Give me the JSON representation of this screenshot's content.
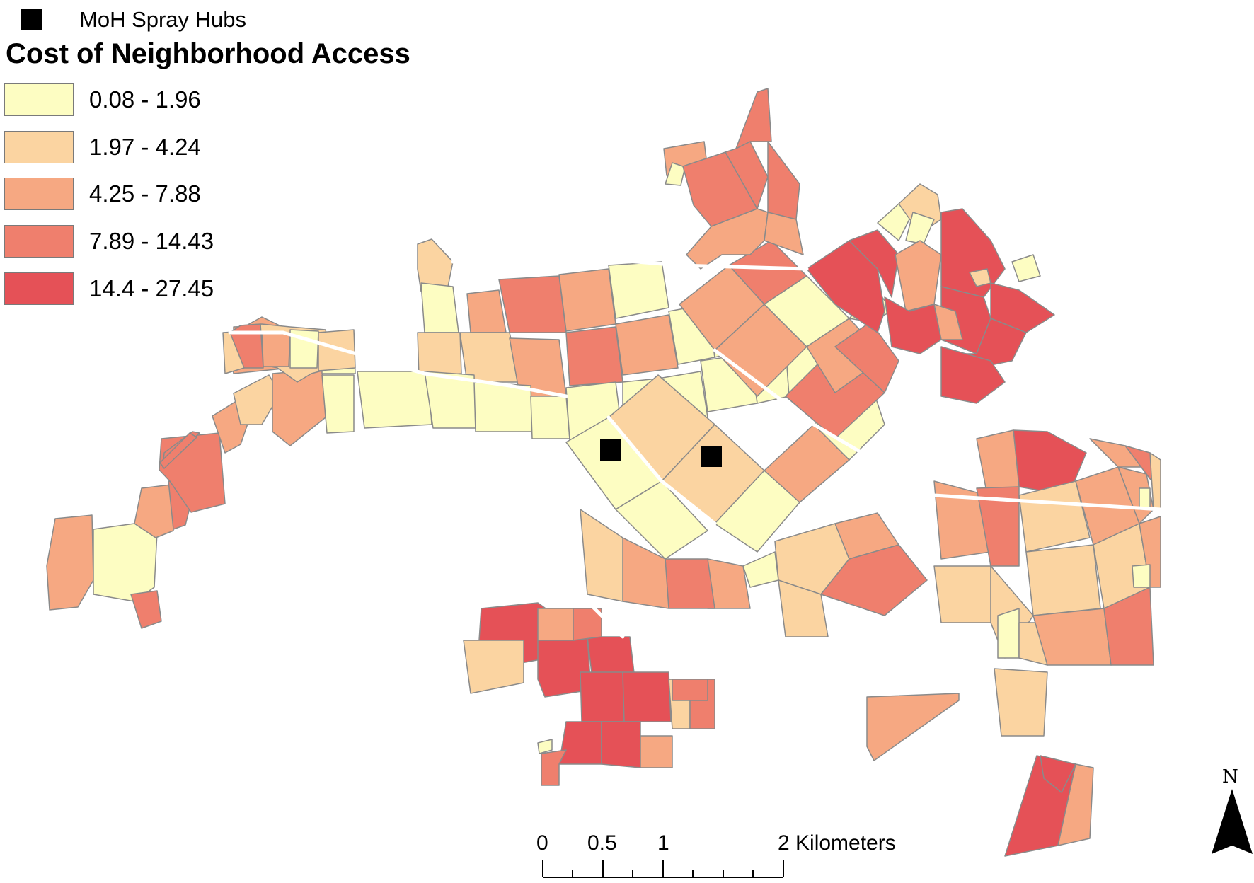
{
  "legend": {
    "hub_label": "MoH Spray Hubs",
    "title": "Cost of Neighborhood Access",
    "classes": [
      {
        "label": "0.08 - 1.96",
        "color": "#fdfdc2"
      },
      {
        "label": "1.97 - 4.24",
        "color": "#fbd4a1"
      },
      {
        "label": "4.25 - 7.88",
        "color": "#f6a882"
      },
      {
        "label": "7.89 - 14.43",
        "color": "#ef7f6d"
      },
      {
        "label": "14.4 - 27.45",
        "color": "#e55157"
      }
    ]
  },
  "scalebar": {
    "ticks": [
      "0",
      "0.5",
      "1",
      "2 Kilometers"
    ]
  },
  "north_arrow": {
    "label": "N"
  },
  "colors": {
    "road": "#ffffff",
    "outline": "#8a8a8a",
    "hub": "#000000"
  }
}
